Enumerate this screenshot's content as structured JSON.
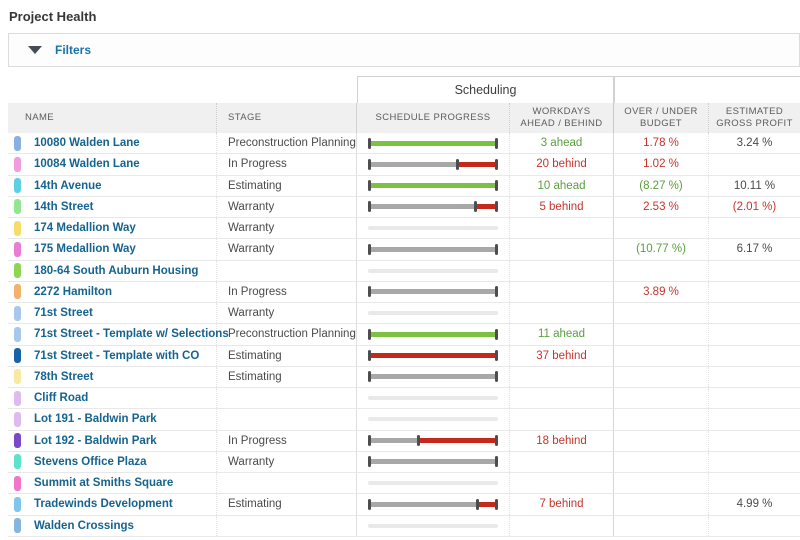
{
  "page": {
    "title": "Project Health"
  },
  "filters": {
    "label": "Filters"
  },
  "colors": {
    "green_bar": "#7cc142",
    "red_bar": "#c4291c",
    "gray_bar": "#a8a8a8",
    "empty_bar": "#e9e9e9",
    "cap": "#4d4d4d",
    "green_text": "#5a9e3d",
    "red_text": "#c5352c",
    "dark_text": "#4a4a4a",
    "link_blue": "#15638f"
  },
  "table": {
    "group_header": {
      "scheduling": "Scheduling"
    },
    "columns": {
      "name": "NAME",
      "stage": "STAGE",
      "progress": "SCHEDULE PROGRESS",
      "workdays": "WORKDAYS\nAHEAD / BEHIND",
      "budget": "OVER / UNDER\nBUDGET",
      "profit": "ESTIMATED\nGROSS PROFIT"
    },
    "rows": [
      {
        "name": "10080 Walden Lane",
        "chip": "#8ab0e2",
        "stage": "Preconstruction Planning",
        "bar": {
          "segments": [
            {
              "c": "green",
              "w": 100
            }
          ]
        },
        "workdays": {
          "text": "3 ahead",
          "tone": "green"
        },
        "budget": {
          "text": "1.78 %",
          "tone": "red"
        },
        "profit": {
          "text": "3.24 %",
          "tone": "dark"
        }
      },
      {
        "name": "10084 Walden Lane",
        "chip": "#f09ddd",
        "stage": "In Progress",
        "bar": {
          "segments": [
            {
              "c": "gray",
              "w": 70
            },
            {
              "c": "red",
              "w": 30
            }
          ]
        },
        "workdays": {
          "text": "20 behind",
          "tone": "red"
        },
        "budget": {
          "text": "1.02 %",
          "tone": "red"
        },
        "profit": null
      },
      {
        "name": "14th Avenue",
        "chip": "#5fd0e4",
        "stage": "Estimating",
        "bar": {
          "segments": [
            {
              "c": "green",
              "w": 100
            }
          ]
        },
        "workdays": {
          "text": "10 ahead",
          "tone": "green"
        },
        "budget": {
          "text": "(8.27 %)",
          "tone": "green"
        },
        "profit": {
          "text": "10.11 %",
          "tone": "dark"
        }
      },
      {
        "name": "14th Street",
        "chip": "#92e68c",
        "stage": "Warranty",
        "bar": {
          "segments": [
            {
              "c": "gray",
              "w": 85
            },
            {
              "c": "red",
              "w": 15
            }
          ]
        },
        "workdays": {
          "text": "5 behind",
          "tone": "red"
        },
        "budget": {
          "text": "2.53 %",
          "tone": "red"
        },
        "profit": {
          "text": "(2.01 %)",
          "tone": "red"
        }
      },
      {
        "name": "174 Medallion Way",
        "chip": "#f6dc69",
        "stage": "Warranty",
        "bar": {
          "segments": []
        },
        "workdays": null,
        "budget": null,
        "profit": null
      },
      {
        "name": "175 Medallion Way",
        "chip": "#ea7cd4",
        "stage": "Warranty",
        "bar": {
          "segments": [
            {
              "c": "gray",
              "w": 100
            }
          ]
        },
        "workdays": null,
        "budget": {
          "text": "(10.77 %)",
          "tone": "green"
        },
        "profit": {
          "text": "6.17 %",
          "tone": "dark"
        }
      },
      {
        "name": "180-64 South Auburn Housing",
        "chip": "#8ed455",
        "stage": "",
        "bar": {
          "segments": []
        },
        "workdays": null,
        "budget": null,
        "profit": null
      },
      {
        "name": "2272 Hamilton",
        "chip": "#f2b26e",
        "stage": "In Progress",
        "bar": {
          "segments": [
            {
              "c": "gray",
              "w": 100
            }
          ]
        },
        "workdays": null,
        "budget": {
          "text": "3.89 %",
          "tone": "red"
        },
        "profit": null
      },
      {
        "name": "71st Street",
        "chip": "#a6c8ec",
        "stage": "Warranty",
        "bar": {
          "segments": []
        },
        "workdays": null,
        "budget": null,
        "profit": null
      },
      {
        "name": "71st Street - Template w/ Selections",
        "chip": "#a6c8ec",
        "stage": "Preconstruction Planning",
        "bar": {
          "segments": [
            {
              "c": "green",
              "w": 100
            }
          ]
        },
        "workdays": {
          "text": "11 ahead",
          "tone": "green"
        },
        "budget": null,
        "profit": null
      },
      {
        "name": "71st Street - Template with CO",
        "chip": "#1a62a8",
        "stage": "Estimating",
        "bar": {
          "segments": [
            {
              "c": "red",
              "w": 100
            }
          ]
        },
        "workdays": {
          "text": "37 behind",
          "tone": "red"
        },
        "budget": null,
        "profit": null
      },
      {
        "name": "78th Street",
        "chip": "#f9e8a0",
        "stage": "Estimating",
        "bar": {
          "segments": [
            {
              "c": "gray",
              "w": 100
            }
          ]
        },
        "workdays": null,
        "budget": null,
        "profit": null
      },
      {
        "name": "Cliff Road",
        "chip": "#ddbbee",
        "stage": "",
        "bar": {
          "segments": []
        },
        "workdays": null,
        "budget": null,
        "profit": null
      },
      {
        "name": "Lot 191 - Baldwin Park",
        "chip": "#ddbbee",
        "stage": "",
        "bar": {
          "segments": []
        },
        "workdays": null,
        "budget": null,
        "profit": null
      },
      {
        "name": "Lot 192 - Baldwin Park",
        "chip": "#7a48c8",
        "stage": "In Progress",
        "bar": {
          "segments": [
            {
              "c": "gray",
              "w": 38
            },
            {
              "c": "red",
              "w": 62
            }
          ]
        },
        "workdays": {
          "text": "18 behind",
          "tone": "red"
        },
        "budget": null,
        "profit": null
      },
      {
        "name": "Stevens Office Plaza",
        "chip": "#5de4c8",
        "stage": "Warranty",
        "bar": {
          "segments": [
            {
              "c": "gray",
              "w": 100
            }
          ]
        },
        "workdays": null,
        "budget": null,
        "profit": null
      },
      {
        "name": "Summit at Smiths Square",
        "chip": "#ef76cb",
        "stage": "",
        "bar": {
          "segments": []
        },
        "workdays": null,
        "budget": null,
        "profit": null
      },
      {
        "name": "Tradewinds Development",
        "chip": "#80c6ec",
        "stage": "Estimating",
        "bar": {
          "segments": [
            {
              "c": "gray",
              "w": 87
            },
            {
              "c": "red",
              "w": 13
            }
          ]
        },
        "workdays": {
          "text": "7 behind",
          "tone": "red"
        },
        "budget": null,
        "profit": {
          "text": "4.99 %",
          "tone": "dark"
        }
      },
      {
        "name": "Walden Crossings",
        "chip": "#86b6df",
        "stage": "",
        "bar": {
          "segments": []
        },
        "workdays": null,
        "budget": null,
        "profit": null
      }
    ]
  }
}
